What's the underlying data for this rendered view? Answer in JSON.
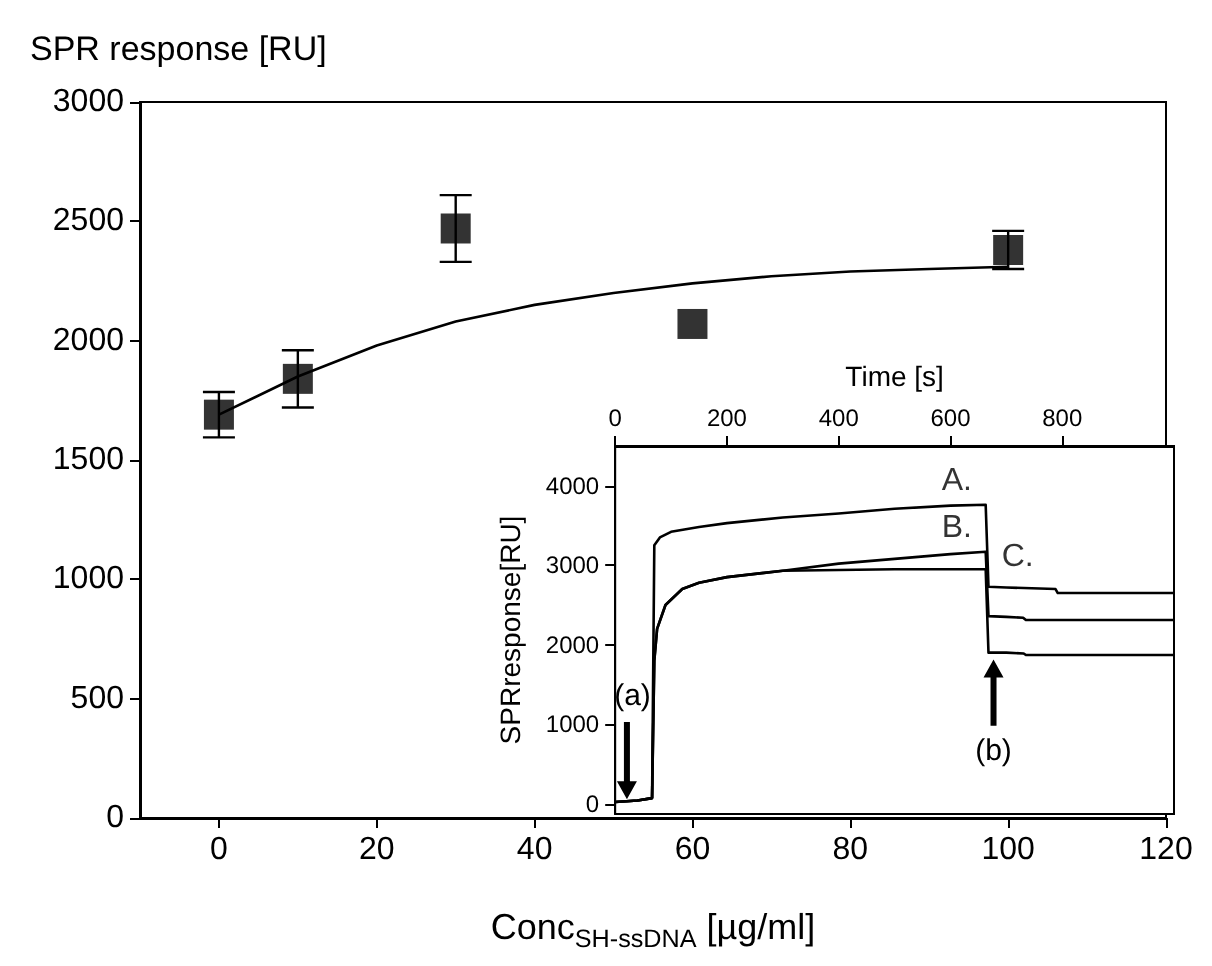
{
  "chart_data": [
    {
      "type": "scatter",
      "xlabel": "Conc$_{SH-ssDNA}$ [µg/ml]",
      "ylabel": "SPR response [RU]",
      "xlim": [
        -10,
        120
      ],
      "xticks": [
        0,
        20,
        40,
        60,
        80,
        100,
        120
      ],
      "ylim": [
        0,
        3000
      ],
      "yticks": [
        0,
        500,
        1000,
        1500,
        2000,
        2500,
        3000
      ],
      "grid": false,
      "marker": "square",
      "series": [
        {
          "color": "#000000",
          "x": [
            0,
            10,
            30,
            60,
            100
          ],
          "values": [
            1690,
            1840,
            2470,
            2070,
            2380
          ],
          "errors": [
            95,
            120,
            140,
            null,
            80
          ]
        },
        {
          "type": "line",
          "marker": "none",
          "color": "#000000",
          "x": [
            0,
            10,
            20,
            30,
            40,
            50,
            60,
            70,
            80,
            90,
            100
          ],
          "values": [
            1690,
            1850,
            1980,
            2080,
            2150,
            2200,
            2240,
            2270,
            2290,
            2300,
            2310
          ]
        }
      ]
    },
    {
      "type": "line",
      "xlabel": "Time [s]",
      "ylabel": "SPRresponse[RU]",
      "xlim": [
        0,
        1000
      ],
      "xticks": [
        0,
        200,
        400,
        600,
        800
      ],
      "ylim": [
        -130,
        4500
      ],
      "yticks": [
        0,
        1000,
        2000,
        3000,
        4000
      ],
      "grid": false,
      "annotations": [
        "(a)",
        "(b)"
      ],
      "series": [
        {
          "name": "A.",
          "color": "#000000",
          "x": [
            0,
            40,
            66,
            70,
            80,
            100,
            150,
            200,
            300,
            400,
            500,
            600,
            663,
            668,
            700,
            788,
            792,
            1000
          ],
          "values": [
            20,
            40,
            70,
            3250,
            3350,
            3420,
            3480,
            3530,
            3600,
            3650,
            3710,
            3750,
            3760,
            2730,
            2720,
            2700,
            2650,
            2650
          ]
        },
        {
          "name": "B.",
          "color": "#000000",
          "x": [
            0,
            40,
            66,
            70,
            75,
            90,
            120,
            150,
            200,
            300,
            400,
            500,
            600,
            663,
            668,
            700,
            730,
            735,
            1000
          ],
          "values": [
            20,
            40,
            70,
            1800,
            2200,
            2500,
            2700,
            2780,
            2850,
            2930,
            3020,
            3080,
            3140,
            3170,
            2360,
            2350,
            2340,
            2310,
            2310
          ]
        },
        {
          "name": "C.",
          "color": "#000000",
          "x": [
            0,
            40,
            66,
            70,
            75,
            90,
            120,
            150,
            200,
            300,
            400,
            500,
            600,
            663,
            668,
            700,
            731,
            735,
            1000
          ],
          "values": [
            20,
            40,
            70,
            1800,
            2200,
            2500,
            2700,
            2780,
            2850,
            2930,
            2940,
            2950,
            2950,
            2950,
            1900,
            1900,
            1890,
            1870,
            1870
          ]
        }
      ]
    }
  ]
}
